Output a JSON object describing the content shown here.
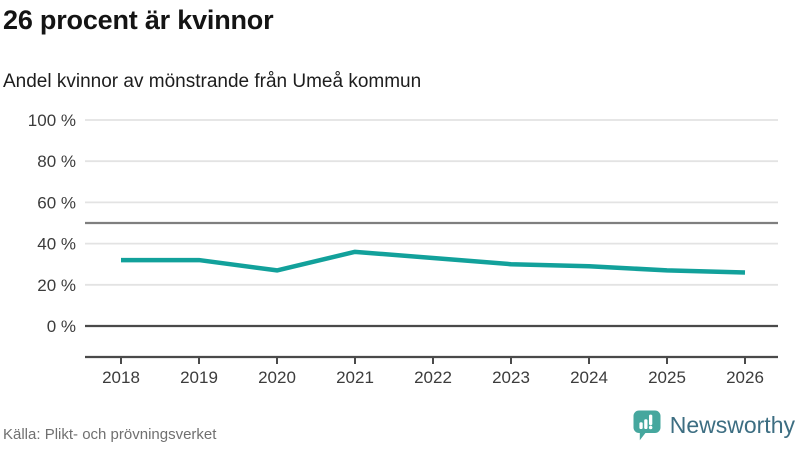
{
  "header": {
    "title": "26 procent är kvinnor",
    "subtitle": "Andel kvinnor av mönstrande från Umeå kommun"
  },
  "chart_data": {
    "type": "line",
    "x": [
      2018,
      2019,
      2020,
      2021,
      2022,
      2023,
      2024,
      2025,
      2026
    ],
    "series": [
      {
        "name": "Andel kvinnor av mönstrande",
        "color": "#12a19b",
        "values": [
          32,
          32,
          27,
          36,
          33,
          30,
          29,
          27,
          26
        ]
      }
    ],
    "ylim": [
      0,
      100
    ],
    "yticks": [
      100,
      80,
      60,
      40,
      20,
      0
    ],
    "ytick_labels": [
      "100 %",
      "80 %",
      "60 %",
      "40 %",
      "20 %",
      "0 %"
    ],
    "xtick_labels": [
      "2018",
      "2019",
      "2020",
      "2021",
      "2022",
      "2023",
      "2024",
      "2025",
      "2026"
    ],
    "reference_line": 50,
    "grid": true,
    "legend": "none"
  },
  "footer": {
    "source": "Källa: Plikt- och prövningsverket",
    "brand": "Newsworthy"
  },
  "colors": {
    "line": "#12a19b",
    "grid_light": "#e3e3e3",
    "reference_line": "#7f7f7f",
    "zero_line": "#4a4a4a",
    "axis": "#4a4a4a",
    "tick_text": "#3c3c3c",
    "source_text": "#707070",
    "brand_text": "#3d6e82",
    "brand_icon": "#46a79e"
  }
}
